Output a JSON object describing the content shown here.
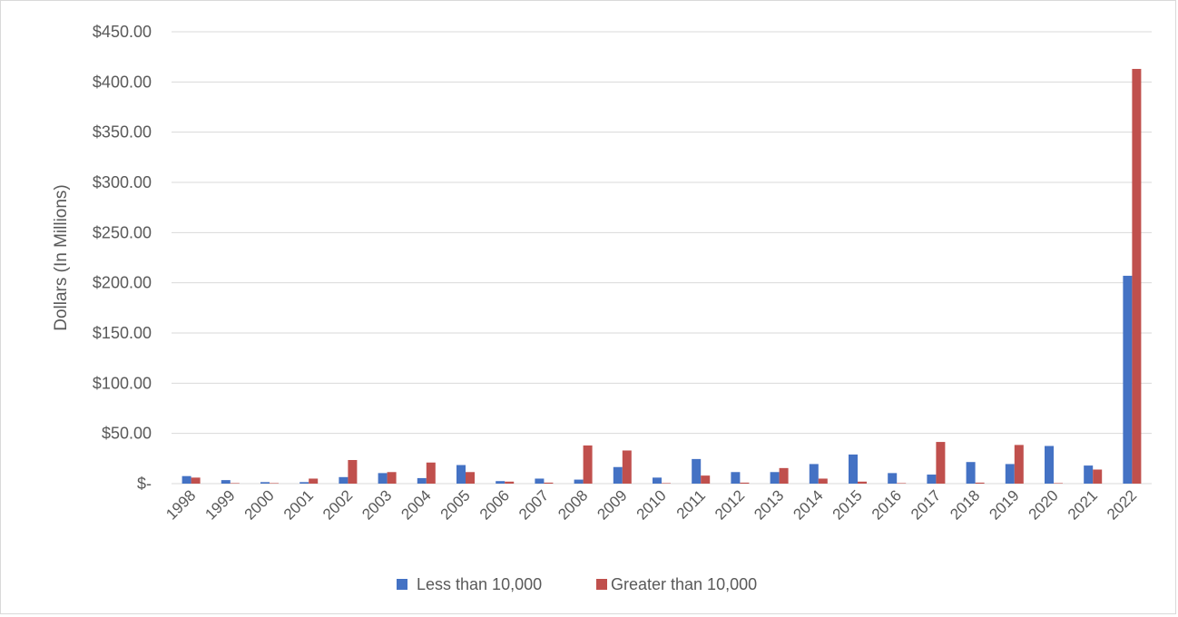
{
  "chart_data": {
    "type": "bar",
    "ylabel": "Dollars (In Millions)",
    "xlabel": "",
    "ylim": [
      0,
      450
    ],
    "yticks": [
      {
        "value": 0,
        "label": "$-"
      },
      {
        "value": 50,
        "label": "$50.00"
      },
      {
        "value": 100,
        "label": "$100.00"
      },
      {
        "value": 150,
        "label": "$150.00"
      },
      {
        "value": 200,
        "label": "$200.00"
      },
      {
        "value": 250,
        "label": "$250.00"
      },
      {
        "value": 300,
        "label": "$300.00"
      },
      {
        "value": 350,
        "label": "$350.00"
      },
      {
        "value": 400,
        "label": "$400.00"
      },
      {
        "value": 450,
        "label": "$450.00"
      }
    ],
    "grid": true,
    "legend_position": "bottom",
    "categories": [
      "1998",
      "1999",
      "2000",
      "2001",
      "2002",
      "2003",
      "2004",
      "2005",
      "2006",
      "2007",
      "2008",
      "2009",
      "2010",
      "2011",
      "2012",
      "2013",
      "2014",
      "2015",
      "2016",
      "2017",
      "2018",
      "2019",
      "2020",
      "2021",
      "2022"
    ],
    "series": [
      {
        "name": "Less than 10,000",
        "color": "#4472c4",
        "values": [
          7.5,
          3.5,
          1.5,
          1.5,
          6.5,
          10.5,
          5.5,
          18.5,
          2.5,
          5.0,
          4.0,
          16.5,
          6.0,
          24.5,
          11.5,
          11.5,
          19.5,
          29.0,
          10.5,
          9.0,
          21.5,
          19.5,
          37.5,
          18.0,
          207.0
        ]
      },
      {
        "name": "Greater than 10,000",
        "color": "#c0504d",
        "values": [
          6.0,
          0.5,
          0.5,
          5.0,
          23.5,
          11.5,
          21.0,
          11.5,
          2.0,
          1.0,
          38.0,
          33.0,
          0.5,
          8.0,
          1.0,
          15.5,
          5.0,
          2.0,
          0.5,
          41.5,
          1.0,
          38.5,
          0.5,
          14.0,
          413.0
        ]
      }
    ]
  }
}
